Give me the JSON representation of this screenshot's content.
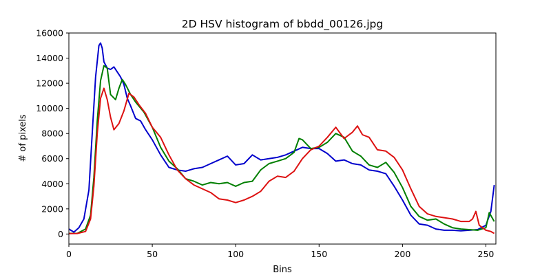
{
  "chart_data": {
    "type": "line",
    "title": "2D HSV histogram of bbdd_00126.jpg",
    "xlabel": "Bins",
    "ylabel": "# of pixels",
    "xlim": [
      0,
      256
    ],
    "ylim": [
      -800,
      16000
    ],
    "xticks": [
      0,
      50,
      100,
      150,
      200,
      250
    ],
    "yticks": [
      0,
      2000,
      4000,
      6000,
      8000,
      10000,
      12000,
      14000,
      16000
    ],
    "grid": false,
    "legend": "none",
    "series": [
      {
        "color": "#0000cc",
        "points": [
          [
            0,
            400
          ],
          [
            3,
            150
          ],
          [
            6,
            500
          ],
          [
            9,
            1200
          ],
          [
            12,
            3500
          ],
          [
            14,
            8000
          ],
          [
            16,
            12500
          ],
          [
            18,
            15000
          ],
          [
            19,
            15200
          ],
          [
            20,
            14800
          ],
          [
            21,
            13700
          ],
          [
            23,
            13200
          ],
          [
            25,
            13100
          ],
          [
            27,
            13300
          ],
          [
            29,
            12900
          ],
          [
            31,
            12500
          ],
          [
            33,
            11900
          ],
          [
            35,
            10800
          ],
          [
            37,
            10200
          ],
          [
            40,
            9200
          ],
          [
            43,
            9000
          ],
          [
            46,
            8300
          ],
          [
            50,
            7500
          ],
          [
            55,
            6300
          ],
          [
            60,
            5300
          ],
          [
            65,
            5100
          ],
          [
            70,
            5000
          ],
          [
            75,
            5200
          ],
          [
            80,
            5300
          ],
          [
            85,
            5600
          ],
          [
            90,
            5900
          ],
          [
            95,
            6200
          ],
          [
            100,
            5500
          ],
          [
            105,
            5600
          ],
          [
            110,
            6300
          ],
          [
            115,
            5900
          ],
          [
            120,
            6000
          ],
          [
            125,
            6100
          ],
          [
            130,
            6300
          ],
          [
            135,
            6600
          ],
          [
            140,
            6900
          ],
          [
            145,
            6800
          ],
          [
            150,
            6800
          ],
          [
            155,
            6400
          ],
          [
            160,
            5800
          ],
          [
            165,
            5900
          ],
          [
            170,
            5600
          ],
          [
            175,
            5500
          ],
          [
            180,
            5100
          ],
          [
            185,
            5000
          ],
          [
            190,
            4800
          ],
          [
            195,
            3800
          ],
          [
            200,
            2700
          ],
          [
            205,
            1500
          ],
          [
            210,
            800
          ],
          [
            215,
            700
          ],
          [
            220,
            400
          ],
          [
            225,
            300
          ],
          [
            230,
            300
          ],
          [
            235,
            250
          ],
          [
            240,
            300
          ],
          [
            245,
            350
          ],
          [
            250,
            700
          ],
          [
            253,
            1800
          ],
          [
            255,
            3900
          ]
        ]
      },
      {
        "color": "#007f00",
        "points": [
          [
            0,
            50
          ],
          [
            5,
            50
          ],
          [
            10,
            400
          ],
          [
            13,
            1500
          ],
          [
            15,
            4500
          ],
          [
            17,
            9000
          ],
          [
            19,
            12200
          ],
          [
            21,
            13400
          ],
          [
            23,
            13200
          ],
          [
            25,
            11100
          ],
          [
            28,
            10700
          ],
          [
            30,
            11600
          ],
          [
            32,
            12300
          ],
          [
            34,
            11900
          ],
          [
            37,
            11100
          ],
          [
            40,
            10500
          ],
          [
            45,
            9700
          ],
          [
            50,
            8500
          ],
          [
            55,
            6900
          ],
          [
            60,
            5800
          ],
          [
            65,
            5200
          ],
          [
            70,
            4400
          ],
          [
            75,
            4200
          ],
          [
            80,
            3900
          ],
          [
            85,
            4100
          ],
          [
            90,
            4000
          ],
          [
            95,
            4100
          ],
          [
            100,
            3800
          ],
          [
            105,
            4100
          ],
          [
            110,
            4200
          ],
          [
            115,
            5100
          ],
          [
            120,
            5600
          ],
          [
            125,
            5800
          ],
          [
            130,
            6000
          ],
          [
            135,
            6500
          ],
          [
            138,
            7600
          ],
          [
            140,
            7500
          ],
          [
            145,
            6800
          ],
          [
            150,
            6900
          ],
          [
            155,
            7300
          ],
          [
            160,
            8000
          ],
          [
            165,
            7700
          ],
          [
            170,
            6600
          ],
          [
            175,
            6200
          ],
          [
            180,
            5500
          ],
          [
            185,
            5300
          ],
          [
            190,
            5700
          ],
          [
            195,
            4900
          ],
          [
            200,
            3700
          ],
          [
            205,
            2200
          ],
          [
            210,
            1400
          ],
          [
            215,
            1100
          ],
          [
            220,
            1200
          ],
          [
            225,
            800
          ],
          [
            230,
            500
          ],
          [
            235,
            400
          ],
          [
            240,
            350
          ],
          [
            245,
            300
          ],
          [
            250,
            500
          ],
          [
            252,
            1700
          ],
          [
            255,
            1000
          ]
        ]
      },
      {
        "color": "#dd1111",
        "points": [
          [
            0,
            30
          ],
          [
            5,
            40
          ],
          [
            10,
            200
          ],
          [
            13,
            1200
          ],
          [
            15,
            3800
          ],
          [
            17,
            8000
          ],
          [
            19,
            10800
          ],
          [
            21,
            11600
          ],
          [
            23,
            10700
          ],
          [
            25,
            9300
          ],
          [
            27,
            8300
          ],
          [
            30,
            8800
          ],
          [
            33,
            9800
          ],
          [
            36,
            11200
          ],
          [
            39,
            10900
          ],
          [
            42,
            10300
          ],
          [
            46,
            9600
          ],
          [
            50,
            8500
          ],
          [
            55,
            7700
          ],
          [
            60,
            6300
          ],
          [
            65,
            5100
          ],
          [
            70,
            4400
          ],
          [
            75,
            3900
          ],
          [
            80,
            3600
          ],
          [
            85,
            3300
          ],
          [
            90,
            2800
          ],
          [
            95,
            2700
          ],
          [
            100,
            2500
          ],
          [
            105,
            2700
          ],
          [
            110,
            3000
          ],
          [
            115,
            3400
          ],
          [
            120,
            4200
          ],
          [
            125,
            4600
          ],
          [
            130,
            4500
          ],
          [
            135,
            5000
          ],
          [
            140,
            6000
          ],
          [
            145,
            6700
          ],
          [
            150,
            7000
          ],
          [
            155,
            7700
          ],
          [
            160,
            8500
          ],
          [
            165,
            7600
          ],
          [
            170,
            8100
          ],
          [
            173,
            8600
          ],
          [
            176,
            7900
          ],
          [
            180,
            7700
          ],
          [
            185,
            6700
          ],
          [
            190,
            6600
          ],
          [
            195,
            6100
          ],
          [
            200,
            5100
          ],
          [
            205,
            3600
          ],
          [
            210,
            2200
          ],
          [
            215,
            1600
          ],
          [
            220,
            1400
          ],
          [
            225,
            1300
          ],
          [
            230,
            1200
          ],
          [
            235,
            1000
          ],
          [
            240,
            1000
          ],
          [
            242,
            1200
          ],
          [
            244,
            1800
          ],
          [
            246,
            700
          ],
          [
            250,
            300
          ],
          [
            253,
            200
          ],
          [
            255,
            50
          ]
        ]
      }
    ]
  }
}
